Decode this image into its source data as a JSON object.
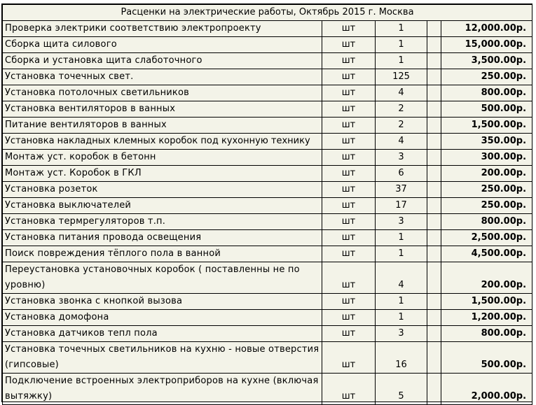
{
  "title": "Расценки на электрические работы, Октябрь 2015 г. Москва",
  "rows": [
    {
      "name": "Проверка электрики соответствию электропроекту",
      "unit": "шт",
      "qty": "1",
      "price": "12,000.00р."
    },
    {
      "name": "Сборка щита силового",
      "unit": "шт",
      "qty": "1",
      "price": "15,000.00р."
    },
    {
      "name": "Сборка и установка щита слаботочного",
      "unit": "шт",
      "qty": "1",
      "price": "3,500.00р."
    },
    {
      "name": "Установка точечных свет.",
      "unit": "шт",
      "qty": "125",
      "price": "250.00р."
    },
    {
      "name": "Установка потолочных светильников",
      "unit": "шт",
      "qty": "4",
      "price": "800.00р."
    },
    {
      "name": "Установка вентиляторов в ванных",
      "unit": "шт",
      "qty": "2",
      "price": "500.00р."
    },
    {
      "name": "Питание вентиляторов в ванных",
      "unit": "шт",
      "qty": "2",
      "price": "1,500.00р."
    },
    {
      "name": "Установка  накладных клемных коробок под кухонную технику",
      "unit": "шт",
      "qty": "4",
      "price": "350.00р."
    },
    {
      "name": "Монтаж уст. коробок в бетонн",
      "unit": "шт",
      "qty": "3",
      "price": "300.00р."
    },
    {
      "name": "Монтаж уст. Коробок в ГКЛ",
      "unit": "шт",
      "qty": "6",
      "price": "200.00р."
    },
    {
      "name": "Установка розеток",
      "unit": "шт",
      "qty": "37",
      "price": "250.00р."
    },
    {
      "name": "Установка выключателей",
      "unit": "шт",
      "qty": "17",
      "price": "250.00р."
    },
    {
      "name": "Установка термрегуляторов т.п.",
      "unit": "шт",
      "qty": "3",
      "price": "800.00р."
    },
    {
      "name": "Установка питания провода освещения",
      "unit": "шт",
      "qty": "1",
      "price": "2,500.00р."
    },
    {
      "name": "Поиск повреждения тёплого пола в ванной",
      "unit": "шт",
      "qty": "1",
      "price": "4,500.00р."
    },
    {
      "name": "Переустановка установочных коробок ( поставленны не по уровню)",
      "unit": "шт",
      "qty": "4",
      "price": "200.00р."
    },
    {
      "name": "Установка звонка с кнопкой вызова",
      "unit": "шт",
      "qty": "1",
      "price": "1,500.00р."
    },
    {
      "name": "Установка  домофона",
      "unit": "шт",
      "qty": "1",
      "price": "1,200.00р."
    },
    {
      "name": "Установка датчиков тепл пола",
      "unit": "шт",
      "qty": "3",
      "price": "800.00р."
    },
    {
      "name": "Установка точечных светильников на кухню - новые отверстия (гипсовые)",
      "unit": "шт",
      "qty": "16",
      "price": "500.00р."
    },
    {
      "name": "Подключение встроенных электроприборов на кухне (включая вытяжку)",
      "unit": "шт",
      "qty": "5",
      "price": "2,000.00р."
    }
  ]
}
